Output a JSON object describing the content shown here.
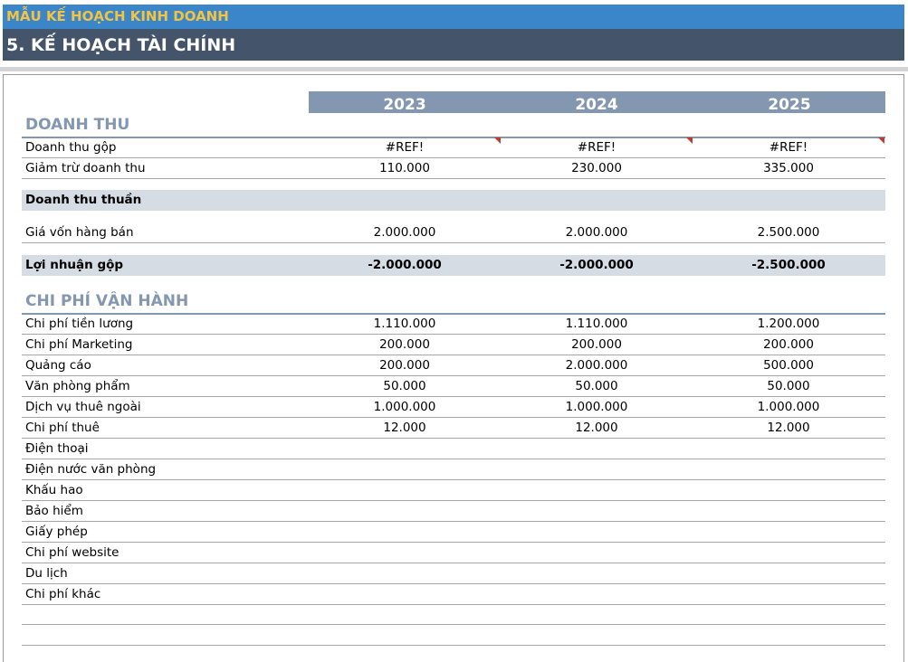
{
  "banner": {
    "title": "MẪU KẾ HOẠCH KINH DOANH",
    "subtitle": "5. KẾ HOẠCH TÀI CHÍNH"
  },
  "years": [
    "2023",
    "2024",
    "2025"
  ],
  "revenue": {
    "heading": "DOANH THU",
    "rows": [
      {
        "label": "Doanh thu gộp",
        "values": [
          "#REF!",
          "#REF!",
          "#REF!"
        ]
      },
      {
        "label": "Giảm trừ doanh thu",
        "values": [
          "110.000",
          "230.000",
          "335.000"
        ]
      }
    ],
    "net": {
      "label": "Doanh thu thuần",
      "values": [
        "",
        "",
        ""
      ]
    },
    "cogs": {
      "label": "Giá vốn hàng bán",
      "values": [
        "2.000.000",
        "2.000.000",
        "2.500.000"
      ]
    },
    "gross": {
      "label": "Lợi nhuận gộp",
      "values": [
        "-2.000.000",
        "-2.000.000",
        "-2.500.000"
      ]
    }
  },
  "opex": {
    "heading": "CHI PHÍ VẬN HÀNH",
    "rows": [
      {
        "label": "Chi phí tiền lương",
        "values": [
          "1.110.000",
          "1.110.000",
          "1.200.000"
        ]
      },
      {
        "label": "Chi phí Marketing",
        "values": [
          "200.000",
          "200.000",
          "200.000"
        ]
      },
      {
        "label": "Quảng cáo",
        "values": [
          "200.000",
          "2.000.000",
          "500.000"
        ]
      },
      {
        "label": "Văn phòng phẩm",
        "values": [
          "50.000",
          "50.000",
          "50.000"
        ]
      },
      {
        "label": "Dịch vụ thuê ngoài",
        "values": [
          "1.000.000",
          "1.000.000",
          "1.000.000"
        ]
      },
      {
        "label": "Chi phí thuê",
        "values": [
          "12.000",
          "12.000",
          "12.000"
        ]
      },
      {
        "label": "Điện thoại",
        "values": [
          "",
          "",
          ""
        ]
      },
      {
        "label": "Điện nước văn phòng",
        "values": [
          "",
          "",
          ""
        ]
      },
      {
        "label": "Khấu hao",
        "values": [
          "",
          "",
          ""
        ]
      },
      {
        "label": "Bảo hiểm",
        "values": [
          "",
          "",
          ""
        ]
      },
      {
        "label": "Giấy phép",
        "values": [
          "",
          "",
          ""
        ]
      },
      {
        "label": "Chi phí website",
        "values": [
          "",
          "",
          ""
        ]
      },
      {
        "label": "Du lịch",
        "values": [
          "",
          "",
          ""
        ]
      },
      {
        "label": "Chi phí khác",
        "values": [
          "",
          "",
          ""
        ]
      }
    ]
  },
  "colors": {
    "banner_blue": "#3b86c9",
    "banner_text": "#f5c342",
    "banner_dark": "#44546a",
    "year_header": "#8497b0",
    "total_fill": "#d6dce4",
    "comment_flag": "#c0392b"
  }
}
